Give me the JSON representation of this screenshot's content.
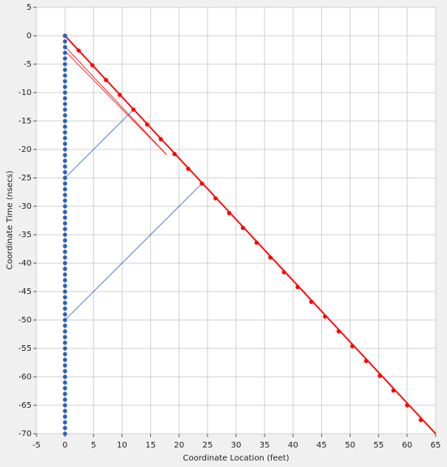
{
  "chart_data": {
    "type": "scatter",
    "xlabel": "Coordinate Location (feet)",
    "ylabel": "Coordinate Time (nsecs)",
    "xlim": [
      -5,
      65
    ],
    "ylim": [
      -70,
      5
    ],
    "xticks": [
      -5,
      0,
      5,
      10,
      15,
      20,
      25,
      30,
      35,
      40,
      45,
      50,
      55,
      60,
      65
    ],
    "yticks": [
      5,
      0,
      -5,
      -10,
      -15,
      -20,
      -25,
      -30,
      -35,
      -40,
      -45,
      -50,
      -55,
      -60,
      -65,
      -70
    ],
    "grid": true,
    "series": [
      {
        "color": "#ff0000",
        "line": 1.8,
        "marker": false,
        "x": [
          0,
          65
        ],
        "values": [
          0,
          -70
        ]
      },
      {
        "color": "#ff0000",
        "line": 0.8,
        "marker": false,
        "x": [
          0,
          17.8
        ],
        "values": [
          -1.9,
          -20.9
        ]
      },
      {
        "color": "#ff0000",
        "line": 0.8,
        "marker": false,
        "x": [
          0,
          17.8
        ],
        "values": [
          -2.7,
          -20.9
        ]
      },
      {
        "color": "#2a62b8",
        "line": 0.8,
        "marker": false,
        "x": [
          0,
          12
        ],
        "values": [
          -25,
          -13
        ]
      },
      {
        "color": "#2a62b8",
        "line": 0.8,
        "marker": false,
        "x": [
          0,
          24
        ],
        "values": [
          -50,
          -26
        ]
      },
      {
        "color": "#ff0000",
        "line": 0,
        "marker": true,
        "x": [
          0,
          2.4,
          4.8,
          7.2,
          9.6,
          12,
          14.4,
          16.8,
          19.2,
          21.6,
          24,
          26.4,
          28.8,
          31.2,
          33.6,
          36,
          38.4,
          40.8,
          43.2,
          45.6,
          48,
          50.4,
          52.8,
          55.2,
          57.6,
          60,
          62.4
        ],
        "values": [
          0,
          -2.6,
          -5.2,
          -7.8,
          -10.4,
          -13,
          -15.6,
          -18.2,
          -20.8,
          -23.4,
          -26,
          -28.6,
          -31.2,
          -33.8,
          -36.4,
          -39,
          -41.6,
          -44.2,
          -46.8,
          -49.4,
          -52,
          -54.6,
          -57.2,
          -59.8,
          -62.4,
          -65,
          -67.6
        ]
      },
      {
        "color": "#2a62b8",
        "line": 0,
        "marker": true,
        "x": [
          0,
          0,
          0,
          0,
          0,
          0,
          0,
          0,
          0,
          0,
          0,
          0,
          0,
          0,
          0,
          0,
          0,
          0,
          0,
          0,
          0,
          0,
          0,
          0,
          0,
          0,
          0,
          0,
          0,
          0,
          0,
          0,
          0,
          0,
          0,
          0,
          0,
          0,
          0,
          0,
          0,
          0,
          0,
          0,
          0,
          0,
          0,
          0,
          0,
          0,
          0,
          0,
          0,
          0,
          0,
          0,
          0,
          0,
          0,
          0,
          0,
          0,
          0,
          0,
          0,
          0,
          0,
          0,
          0,
          0,
          0
        ],
        "values": [
          0,
          -1,
          -2,
          -3,
          -4,
          -5,
          -6,
          -7,
          -8,
          -9,
          -10,
          -11,
          -12,
          -13,
          -14,
          -15,
          -16,
          -17,
          -18,
          -19,
          -20,
          -21,
          -22,
          -23,
          -24,
          -25,
          -26,
          -27,
          -28,
          -29,
          -30,
          -31,
          -32,
          -33,
          -34,
          -35,
          -36,
          -37,
          -38,
          -39,
          -40,
          -41,
          -42,
          -43,
          -44,
          -45,
          -46,
          -47,
          -48,
          -49,
          -50,
          -51,
          -52,
          -53,
          -54,
          -55,
          -56,
          -57,
          -58,
          -59,
          -60,
          -61,
          -62,
          -63,
          -64,
          -65,
          -66,
          -67,
          -68,
          -69,
          -70
        ]
      }
    ]
  }
}
